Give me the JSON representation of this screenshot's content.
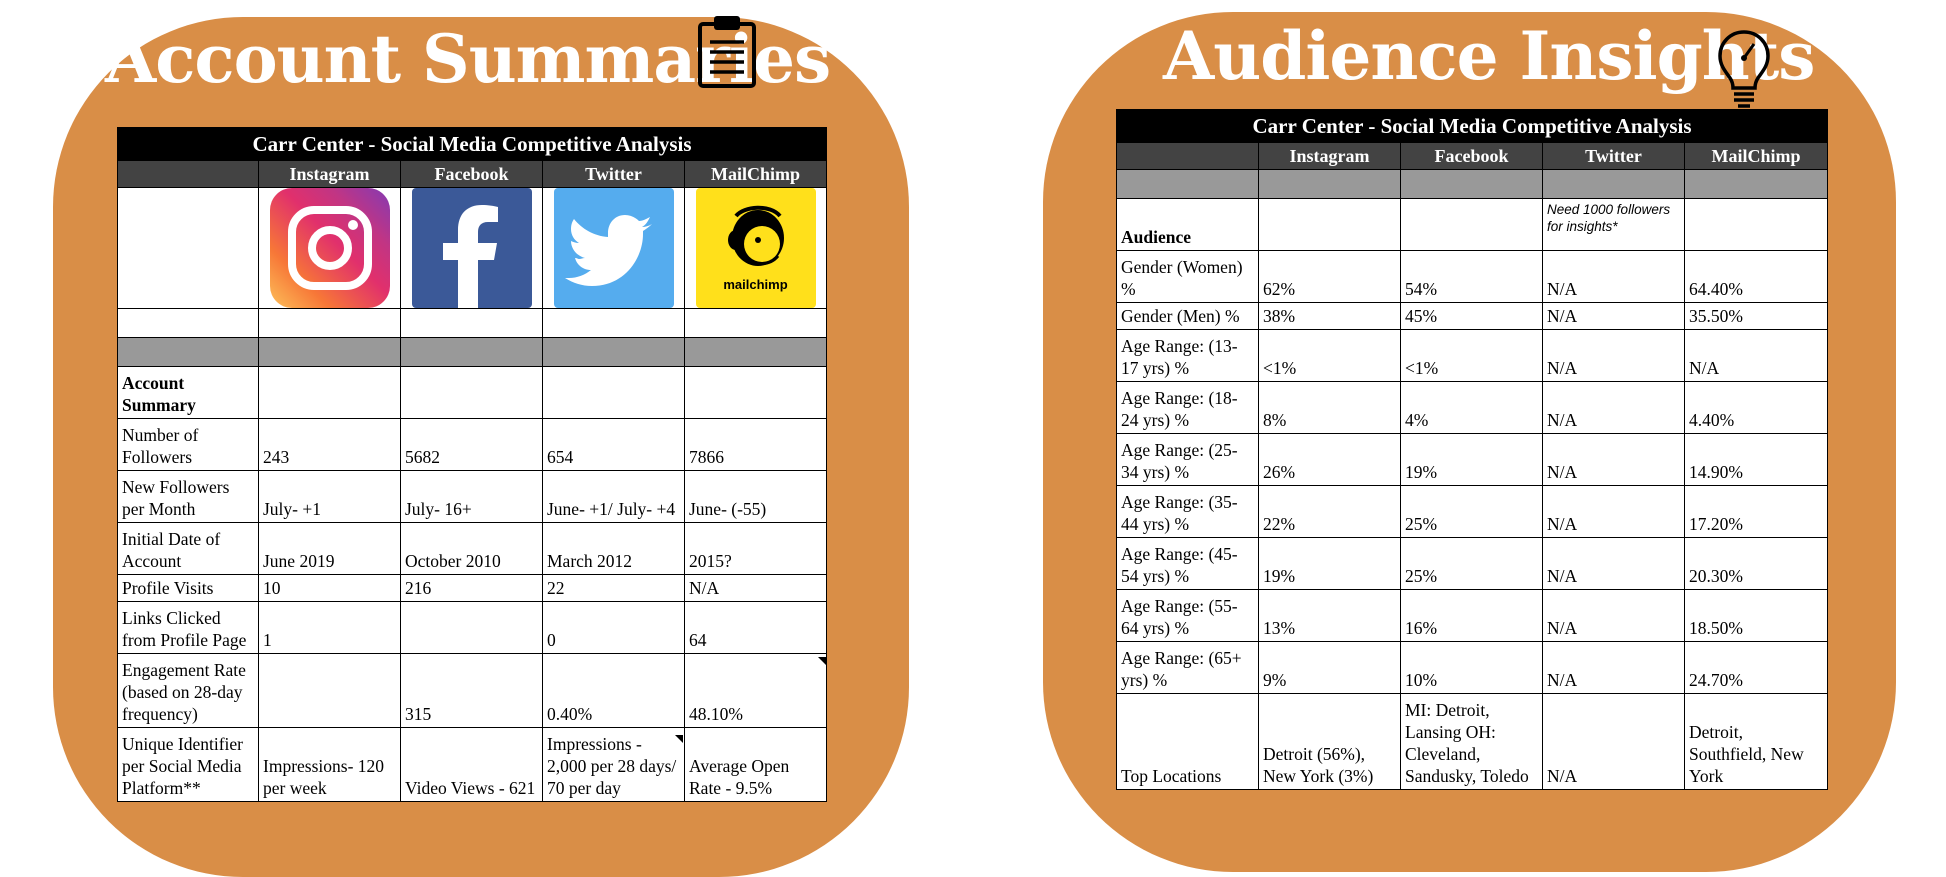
{
  "left_panel": {
    "title": "Account Summaries",
    "icon": "clipboard-icon",
    "table": {
      "caption": "Carr Center - Social Media Competitive Analysis",
      "columns": [
        "",
        "Instagram",
        "Facebook",
        "Twitter",
        "MailChimp"
      ],
      "logos": [
        {
          "name": "instagram-logo"
        },
        {
          "name": "facebook-logo"
        },
        {
          "name": "twitter-logo"
        },
        {
          "name": "mailchimp-logo",
          "label": "mailchimp"
        }
      ],
      "section_label": "Account Summary",
      "rows": [
        {
          "label": "Number of Followers",
          "values": [
            "243",
            "5682",
            "654",
            "7866"
          ]
        },
        {
          "label": "New Followers per Month",
          "values": [
            "July- +1",
            "July- 16+",
            "June- +1/ July- +4",
            "June- (-55)"
          ]
        },
        {
          "label": "Initial Date of Account",
          "values": [
            "June 2019",
            "October 2010",
            "March 2012",
            "2015?"
          ]
        },
        {
          "label": "Profile Visits",
          "values": [
            "10",
            "216",
            "22",
            "N/A"
          ]
        },
        {
          "label": "Links Clicked from Profile Page",
          "values": [
            "1",
            "",
            "0",
            "64"
          ]
        },
        {
          "label": "Engagement Rate (based on 28-day frequency)",
          "values": [
            "",
            "315",
            "0.40%",
            "48.10%"
          ]
        },
        {
          "label": "Unique Identifier per Social Media Platform**",
          "values": [
            "Impressions- 120 per week",
            "Video Views - 621",
            "Impressions - 2,000 per 28 days/ 70 per day",
            "Average Open Rate - 9.5%"
          ]
        }
      ]
    }
  },
  "right_panel": {
    "title": "Audience Insights",
    "icon": "lightbulb-icon",
    "table": {
      "caption": "Carr Center - Social Media Competitive Analysis",
      "columns": [
        "",
        "Instagram",
        "Facebook",
        "Twitter",
        "MailChimp"
      ],
      "section_label": "Audience",
      "twitter_note": "Need 1000 followers for insights*",
      "rows": [
        {
          "label": "Gender (Women) %",
          "values": [
            "62%",
            "54%",
            "N/A",
            "64.40%"
          ]
        },
        {
          "label": "Gender (Men) %",
          "values": [
            "38%",
            "45%",
            "N/A",
            "35.50%"
          ]
        },
        {
          "label": "Age Range: (13-17 yrs) %",
          "values": [
            "<1%",
            "<1%",
            "N/A",
            "N/A"
          ]
        },
        {
          "label": "Age Range: (18-24 yrs) %",
          "values": [
            "8%",
            "4%",
            "N/A",
            "4.40%"
          ]
        },
        {
          "label": "Age Range: (25-34 yrs) %",
          "values": [
            "26%",
            "19%",
            "N/A",
            "14.90%"
          ]
        },
        {
          "label": "Age Range: (35-44 yrs) %",
          "values": [
            "22%",
            "25%",
            "N/A",
            "17.20%"
          ]
        },
        {
          "label": "Age Range: (45-54 yrs) %",
          "values": [
            "19%",
            "25%",
            "N/A",
            "20.30%"
          ]
        },
        {
          "label": "Age Range: (55-64 yrs) %",
          "values": [
            "13%",
            "16%",
            "N/A",
            "18.50%"
          ]
        },
        {
          "label": "Age Range: (65+ yrs) %",
          "values": [
            "9%",
            "10%",
            "N/A",
            "24.70%"
          ]
        },
        {
          "label": "Top Locations",
          "values": [
            "Detroit (56%), New York (3%)",
            "MI: Detroit, Lansing OH: Cleveland, Sandusky, Toledo",
            "N/A",
            "Detroit, Southfield, New York"
          ]
        }
      ]
    }
  },
  "colors": {
    "panel": "#d98e47",
    "caption_bg": "#000000",
    "header_bg": "#434343",
    "gray_row": "#999999"
  }
}
